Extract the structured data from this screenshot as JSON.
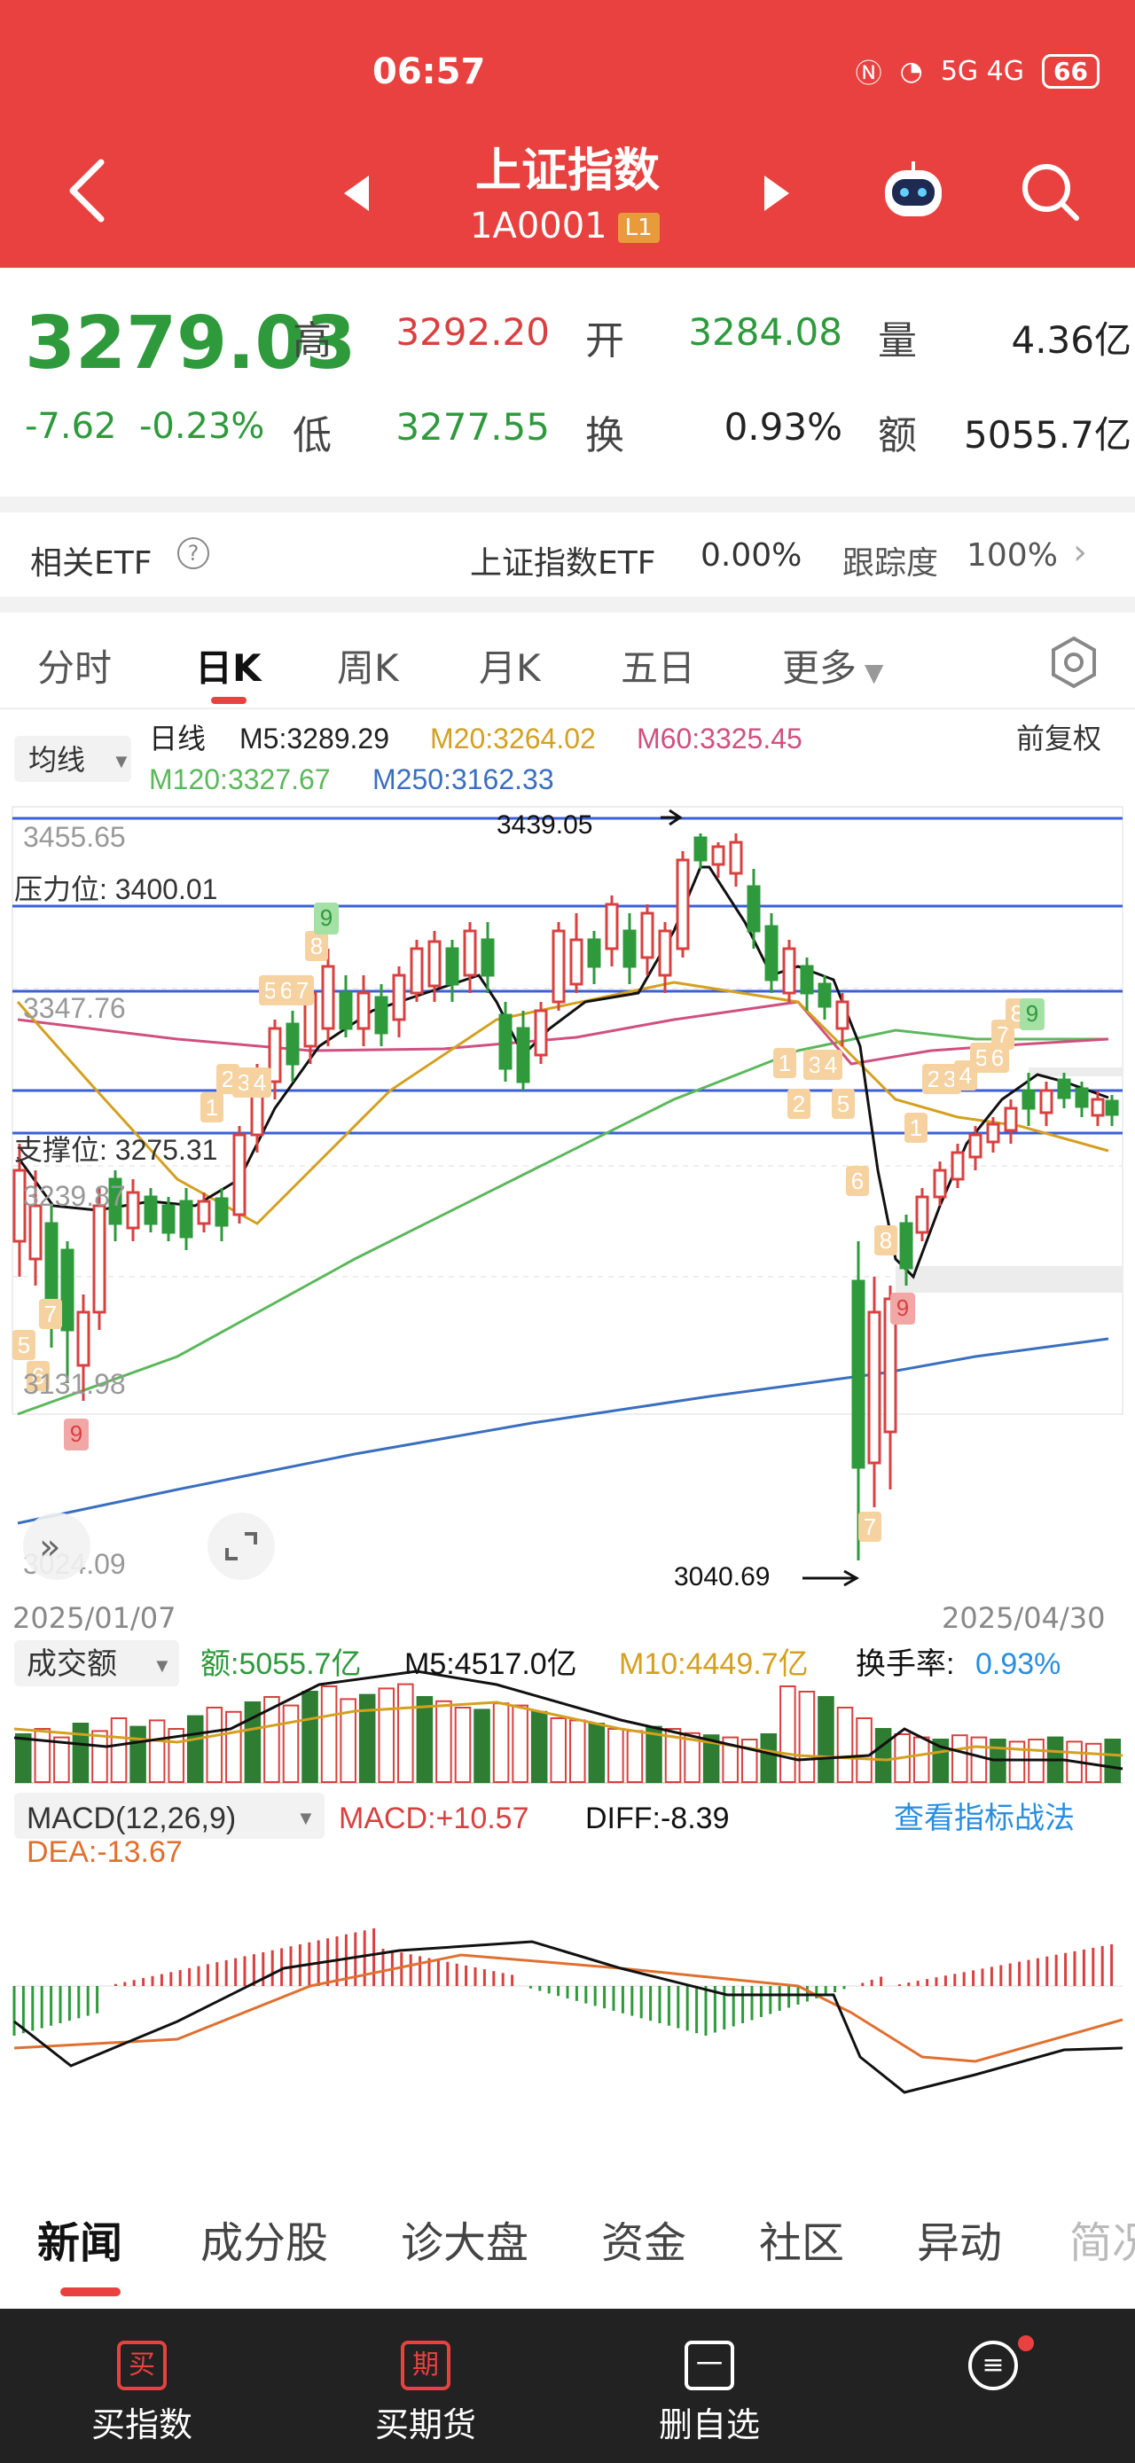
{
  "status": {
    "time": "06:57",
    "network": "5G 4G",
    "battery": "66"
  },
  "header": {
    "title": "上证指数",
    "code": "1A0001",
    "level": "L1"
  },
  "quote": {
    "price": "3279.03",
    "change": "-7.62",
    "change_pct": "-0.23%",
    "high_label": "高",
    "high": "3292.20",
    "open_label": "开",
    "open": "3284.08",
    "vol_label": "量",
    "vol": "4.36亿",
    "low_label": "低",
    "low": "3277.55",
    "turnover_label": "换",
    "turnover": "0.93%",
    "amount_label": "额",
    "amount": "5055.7亿"
  },
  "etf": {
    "label": "相关ETF",
    "name": "上证指数ETF",
    "pct": "0.00%",
    "track_label": "跟踪度",
    "track": "100%"
  },
  "tabs": [
    "分时",
    "日K",
    "周K",
    "月K",
    "五日",
    "更多"
  ],
  "ma": {
    "dropdown": "均线",
    "period": "日线",
    "m5": "M5:3289.29",
    "m20": "M20:3264.02",
    "m60": "M60:3325.45",
    "m120": "M120:3327.67",
    "m250": "M250:3162.33",
    "adjust": "前复权"
  },
  "chart_labels": {
    "p1": "3455.65",
    "resist": "压力位: 3400.01",
    "p2": "3347.76",
    "support": "支撑位: 3275.31",
    "p3": "3239.87",
    "p4": "3131.98",
    "p5": "3024.09",
    "high_mark": "3439.05",
    "low_mark": "3040.69",
    "date_start": "2025/01/07",
    "date_end": "2025/04/30",
    "td_marks": [
      "5",
      "6",
      "7",
      "9",
      "1",
      "2",
      "3",
      "4",
      "5",
      "6",
      "7",
      "8",
      "9",
      "1",
      "2",
      "3",
      "4",
      "5",
      "6",
      "7",
      "8",
      "9",
      "1",
      "2",
      "3",
      "4",
      "5",
      "6",
      "7",
      "8",
      "9"
    ]
  },
  "volume": {
    "dropdown": "成交额",
    "amount": "额:5055.7亿",
    "m5": "M5:4517.0亿",
    "m10": "M10:4449.7亿",
    "turnover_label": "换手率:",
    "turnover": "0.93%"
  },
  "macd": {
    "dropdown": "MACD(12,26,9)",
    "macd": "MACD:+10.57",
    "diff": "DIFF:-8.39",
    "dea": "DEA:-13.67",
    "link": "查看指标战法"
  },
  "news_tabs": [
    "新闻",
    "成分股",
    "诊大盘",
    "资金",
    "社区",
    "异动",
    "简况"
  ],
  "bottom_nav": [
    {
      "icon": "买",
      "label": "买指数"
    },
    {
      "icon": "期",
      "label": "买期货"
    },
    {
      "icon": "一",
      "label": "删自选"
    },
    {
      "icon": "≡",
      "label": ""
    }
  ],
  "colors": {
    "brand": "#e8413f",
    "up": "#d94040",
    "down": "#2e9a3c",
    "link": "#2a8ee0"
  },
  "chart_data": {
    "type": "candlestick",
    "y_range": [
      3024.09,
      3455.65
    ],
    "horizontal_lines": [
      3455.65,
      3400.01,
      3347.76,
      3275.31
    ],
    "annotations": {
      "high": 3439.05,
      "low": 3040.69
    },
    "x_range": [
      "2025/01/07",
      "2025/04/30"
    ]
  }
}
